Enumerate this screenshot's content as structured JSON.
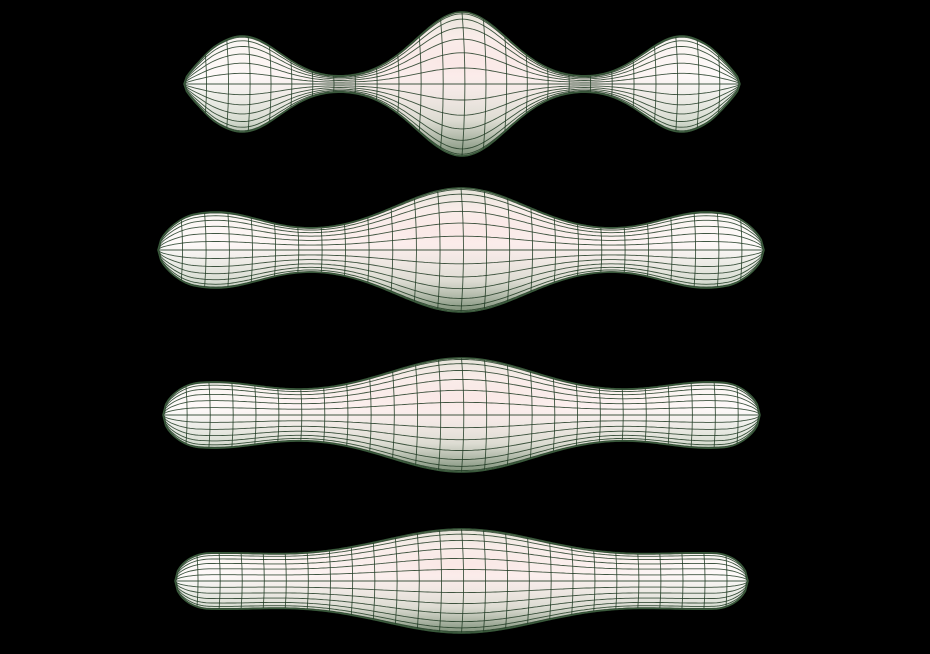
{
  "scene": {
    "background": "#000000",
    "surface_color_light": "#ffffff",
    "surface_color_mid": "#e9ece6",
    "surface_color_dark": "#9aa896",
    "surface_tint": "#f3d9d6",
    "mesh_line_color": "#1e3a22",
    "shape_count": 4
  }
}
